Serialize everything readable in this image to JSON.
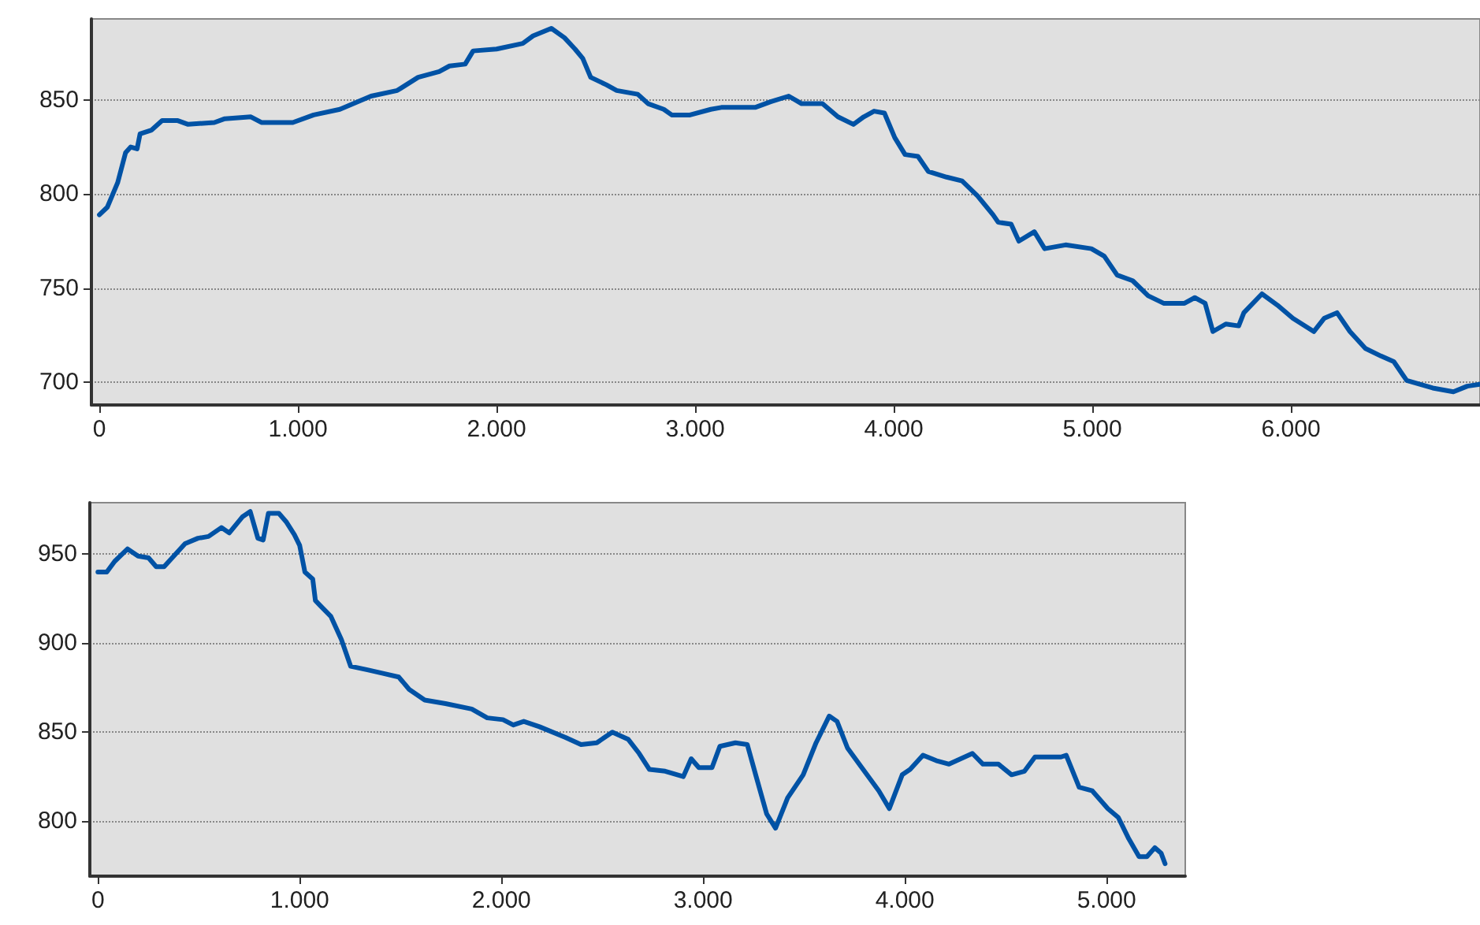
{
  "chart_data": [
    {
      "type": "line",
      "grid": "y",
      "marker": "none",
      "line_style": "solid",
      "xlim": [
        -40,
        6952
      ],
      "ylim": [
        688,
        893
      ],
      "xticks": [
        0,
        {
          "value": 1000,
          "label": "1.000"
        },
        {
          "value": 2000,
          "label": "2.000"
        },
        {
          "value": 3000,
          "label": "3.000"
        },
        {
          "value": 4000,
          "label": "4.000"
        },
        {
          "value": 5000,
          "label": "5.000"
        },
        {
          "value": 6000,
          "label": "6.000"
        }
      ],
      "yticks": [
        700,
        750,
        800,
        850
      ],
      "series": [
        {
          "color": "#0052a5",
          "x": [
            0,
            40,
            92,
            132,
            158,
            190,
            205,
            263,
            316,
            395,
            447,
            579,
            632,
            763,
            816,
            974,
            1079,
            1211,
            1368,
            1500,
            1605,
            1711,
            1763,
            1842,
            1882,
            2000,
            2132,
            2184,
            2276,
            2342,
            2395,
            2434,
            2474,
            2553,
            2605,
            2711,
            2763,
            2842,
            2882,
            2974,
            3079,
            3132,
            3211,
            3302,
            3380,
            3471,
            3536,
            3641,
            3719,
            3797,
            3849,
            3901,
            3953,
            4005,
            4057,
            4122,
            4174,
            4266,
            4344,
            4422,
            4500,
            4526,
            4591,
            4630,
            4708,
            4760,
            4865,
            4995,
            5060,
            5125,
            5203,
            5281,
            5359,
            5464,
            5516,
            5568,
            5607,
            5672,
            5737,
            5763,
            5854,
            5932,
            6010,
            6115,
            6167,
            6232,
            6297,
            6375,
            6453,
            6518,
            6583,
            6714,
            6818,
            6888,
            6950
          ],
          "values": [
            789,
            793,
            806,
            822,
            825,
            824,
            832,
            834,
            839,
            839,
            837,
            838,
            840,
            841,
            838,
            838,
            842,
            845,
            852,
            855,
            862,
            865,
            868,
            869,
            876,
            877,
            880,
            884,
            888,
            883,
            877,
            872,
            862,
            858,
            855,
            853,
            848,
            845,
            842,
            842,
            845,
            846,
            846,
            846,
            849,
            852,
            848,
            848,
            841,
            837,
            841,
            844,
            843,
            830,
            821,
            820,
            812,
            809,
            807,
            799,
            789,
            785,
            784,
            775,
            780,
            771,
            773,
            771,
            767,
            757,
            754,
            746,
            742,
            742,
            745,
            742,
            727,
            731,
            730,
            737,
            747,
            741,
            734,
            727,
            734,
            737,
            727,
            718,
            714,
            711,
            701,
            697,
            695,
            698,
            699
          ]
        }
      ]
    },
    {
      "type": "line",
      "grid": "y",
      "marker": "none",
      "line_style": "solid",
      "xlim": [
        -40,
        5390
      ],
      "ylim": [
        769,
        979
      ],
      "xticks": [
        0,
        {
          "value": 1000,
          "label": "1.000"
        },
        {
          "value": 2000,
          "label": "2.000"
        },
        {
          "value": 3000,
          "label": "3.000"
        },
        {
          "value": 4000,
          "label": "4.000"
        },
        {
          "value": 5000,
          "label": "5.000"
        }
      ],
      "yticks": [
        800,
        850,
        900,
        950
      ],
      "series": [
        {
          "color": "#0052a5",
          "x": [
            0,
            44,
            83,
            147,
            199,
            251,
            289,
            328,
            432,
            496,
            548,
            612,
            651,
            716,
            755,
            793,
            819,
            845,
            897,
            935,
            974,
            1000,
            1026,
            1065,
            1078,
            1103,
            1155,
            1207,
            1253,
            1336,
            1413,
            1491,
            1543,
            1620,
            1723,
            1853,
            1930,
            2008,
            2059,
            2111,
            2189,
            2318,
            2395,
            2473,
            2550,
            2628,
            2683,
            2734,
            2812,
            2902,
            2941,
            2979,
            3044,
            3083,
            3160,
            3219,
            3263,
            3315,
            3359,
            3419,
            3496,
            3560,
            3625,
            3664,
            3716,
            3793,
            3871,
            3923,
            3987,
            4026,
            4090,
            4155,
            4219,
            4335,
            4387,
            4464,
            4529,
            4593,
            4645,
            4774,
            4800,
            4864,
            4929,
            5006,
            5058,
            5110,
            5161,
            5200,
            5239,
            5270,
            5290
          ],
          "values": [
            940,
            940,
            946,
            953,
            949,
            948,
            943,
            943,
            956,
            959,
            960,
            965,
            962,
            971,
            974,
            959,
            958,
            973,
            973,
            968,
            961,
            955,
            940,
            936,
            924,
            921,
            915,
            902,
            887,
            885,
            883,
            881,
            874,
            868,
            866,
            863,
            858,
            857,
            854,
            856,
            853,
            847,
            843,
            844,
            850,
            846,
            838,
            829,
            828,
            825,
            835,
            830,
            830,
            842,
            844,
            843,
            825,
            804,
            796,
            813,
            826,
            844,
            859,
            856,
            841,
            829,
            817,
            807,
            826,
            829,
            837,
            834,
            832,
            838,
            832,
            832,
            826,
            828,
            836,
            836,
            837,
            819,
            817,
            807,
            802,
            790,
            780,
            780,
            785,
            782,
            776
          ]
        }
      ]
    }
  ]
}
